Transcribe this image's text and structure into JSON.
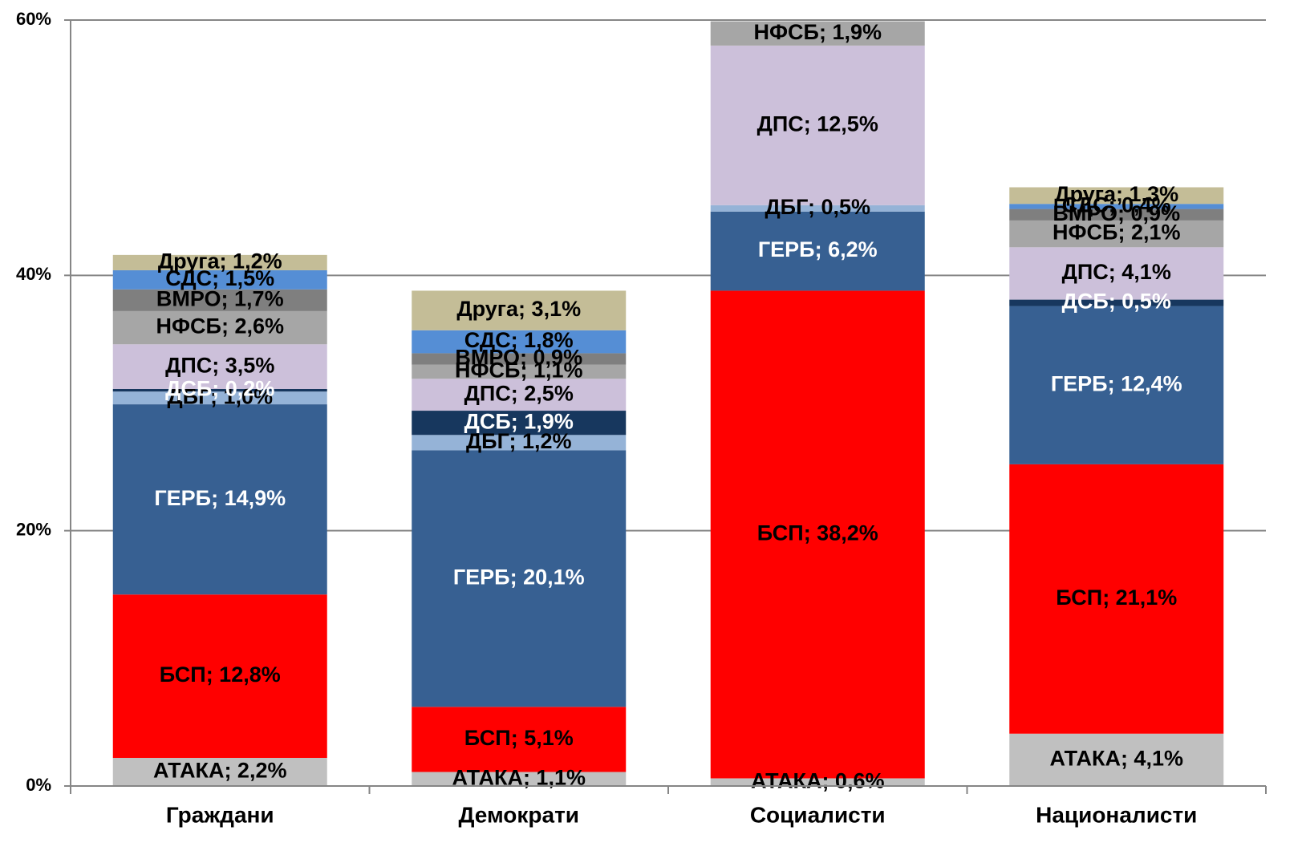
{
  "chart_data": {
    "type": "stacked_bar",
    "categories": [
      "Граждани",
      "Демократи",
      "Социалисти",
      "Националисти"
    ],
    "ylim": [
      0,
      60
    ],
    "yticks": [
      {
        "value": 0,
        "label": "0%"
      },
      {
        "value": 20,
        "label": "20%"
      },
      {
        "value": 40,
        "label": "40%"
      },
      {
        "value": 60,
        "label": "60%"
      }
    ],
    "grid": true,
    "series": [
      {
        "color": "#c0c0c0",
        "label_color": "#000000",
        "values": [
          2.2,
          1.1,
          0.6,
          4.1
        ],
        "value_labels": [
          "АТАКА; 2,2%",
          "АТАКА; 1,1%",
          "АТАКА; 0,6%",
          "АТАКА; 4,1%"
        ]
      },
      {
        "color": "#ff0000",
        "label_color": "#000000",
        "values": [
          12.8,
          5.1,
          38.2,
          21.1
        ],
        "value_labels": [
          "БСП; 12,8%",
          "БСП; 5,1%",
          "БСП; 38,2%",
          "БСП; 21,1%"
        ]
      },
      {
        "color": "#376092",
        "label_color": "#ffffff",
        "values": [
          14.9,
          20.1,
          6.2,
          12.4
        ],
        "value_labels": [
          "ГЕРБ; 14,9%",
          "ГЕРБ; 20,1%",
          "ГЕРБ; 6,2%",
          "ГЕРБ; 12,4%"
        ]
      },
      {
        "color": "#95b3d7",
        "label_color": "#000000",
        "values": [
          1.0,
          1.2,
          0.5,
          null
        ],
        "value_labels": [
          "ДБГ; 1,0%",
          "ДБГ; 1,2%",
          "ДБГ; 0,5%",
          null
        ]
      },
      {
        "color": "#17375e",
        "label_color": "#ffffff",
        "values": [
          0.2,
          1.9,
          null,
          0.5
        ],
        "value_labels": [
          "ДСБ; 0,2%",
          "ДСБ; 1,9%",
          null,
          "ДСБ; 0,5%"
        ]
      },
      {
        "color": "#ccc0da",
        "label_color": "#000000",
        "values": [
          3.5,
          2.5,
          12.5,
          4.1
        ],
        "value_labels": [
          "ДПС; 3,5%",
          "ДПС; 2,5%",
          "ДПС; 12,5%",
          "ДПС; 4,1%"
        ]
      },
      {
        "color": "#a6a6a6",
        "label_color": "#000000",
        "values": [
          2.6,
          1.1,
          1.9,
          2.1
        ],
        "value_labels": [
          "НФСБ; 2,6%",
          "НФСБ; 1,1%",
          "НФСБ; 1,9%",
          "НФСБ; 2,1%"
        ]
      },
      {
        "color": "#7f7f7f",
        "label_color": "#000000",
        "values": [
          1.7,
          0.9,
          null,
          0.9
        ],
        "value_labels": [
          "ВМРО; 1,7%",
          "ВМРО; 0,9%",
          null,
          "ВМРО; 0,9%"
        ]
      },
      {
        "color": "#558ed5",
        "label_color": "#000000",
        "values": [
          1.5,
          1.8,
          null,
          0.4
        ],
        "value_labels": [
          "СДС; 1,5%",
          "СДС; 1,8%",
          null,
          "СДС; 0,4%"
        ]
      },
      {
        "color": "#c4bd97",
        "label_color": "#000000",
        "values": [
          1.2,
          3.1,
          null,
          1.3
        ],
        "value_labels": [
          "Друга; 1,2%",
          "Друга; 3,1%",
          null,
          "Друга; 1,3%"
        ]
      }
    ]
  }
}
